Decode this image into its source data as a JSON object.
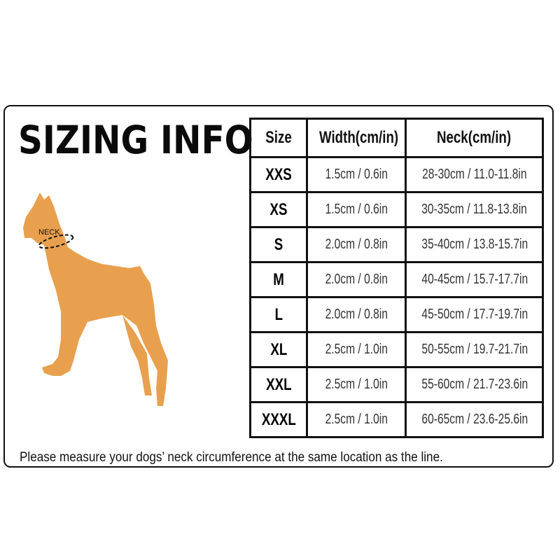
{
  "title": "SIZING INFO",
  "illustration": {
    "neck_label": "NECK",
    "fill_color": "#E8A04E"
  },
  "table": {
    "headers": [
      "Size",
      "Width(cm/in)",
      "Neck(cm/in)"
    ],
    "rows": [
      {
        "size": "XXS",
        "width": "1.5cm / 0.6in",
        "neck": "28-30cm / 11.0-11.8in"
      },
      {
        "size": "XS",
        "width": "1.5cm / 0.6in",
        "neck": "30-35cm / 11.8-13.8in"
      },
      {
        "size": "S",
        "width": "2.0cm / 0.8in",
        "neck": "35-40cm / 13.8-15.7in"
      },
      {
        "size": "M",
        "width": "2.0cm / 0.8in",
        "neck": "40-45cm / 15.7-17.7in"
      },
      {
        "size": "L",
        "width": "2.0cm / 0.8in",
        "neck": "45-50cm / 17.7-19.7in"
      },
      {
        "size": "XL",
        "width": "2.5cm / 1.0in",
        "neck": "50-55cm / 19.7-21.7in"
      },
      {
        "size": "XXL",
        "width": "2.5cm / 1.0in",
        "neck": "55-60cm / 21.7-23.6in"
      },
      {
        "size": "XXXL",
        "width": "2.5cm / 1.0in",
        "neck": "60-65cm / 23.6-25.6in"
      }
    ]
  },
  "note": "Please measure your dogs’  neck circumference at the same location as the line."
}
